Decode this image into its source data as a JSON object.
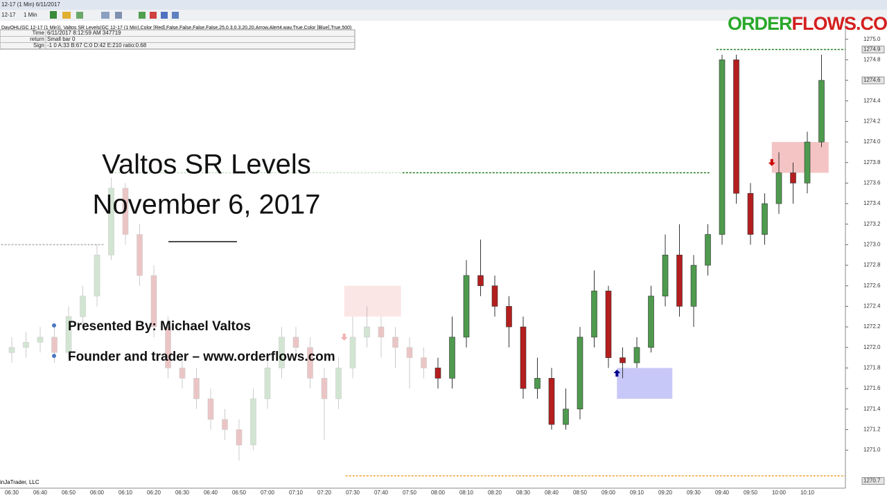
{
  "window": {
    "title": "12-17 (1 Min)  6/11/2017",
    "toolbar": [
      "12-17",
      "1 Min"
    ]
  },
  "indicator_line": "DayOHL(GC 12-17 (1 Min)), Valtos SR Levels(GC 12-17 (1 Min),Color [Red],False,False,False,False,25,0.3,0.3,20,20,Arrow,Alert4.wav,True,Color [Blue],True,500)",
  "info_table": {
    "rows": [
      [
        "Time",
        "6/11/2017 8:12:59 AM 347719"
      ],
      [
        "return",
        "Small bar 0"
      ],
      [
        "Sign",
        "-1 0 A:33 B:67 C:0 D:42 E:210 ratio:0.68"
      ]
    ]
  },
  "logo": {
    "left": "ORDER",
    "right": "FLOWS.COM"
  },
  "overlay": {
    "title": "Valtos SR Levels",
    "subtitle": "November 6, 2017",
    "bullets": [
      "Presented By: Michael Valtos",
      "Founder and trader – www.orderflows.com"
    ]
  },
  "footer": "inJaTrader, LLC",
  "chart_data": {
    "type": "candlestick",
    "categories": [
      "06:30",
      null,
      "06:40",
      null,
      "06:50",
      null,
      "06:00",
      null,
      "06:10",
      null,
      "06:20",
      null,
      "06:30",
      null,
      "06:40",
      null,
      "06:50",
      null,
      "07:00",
      null,
      "07:10",
      null,
      "07:20",
      null,
      "07:30",
      null,
      "07:40",
      null,
      "07:50",
      null,
      "08:00",
      null,
      "08:10",
      null,
      "08:20",
      null,
      "08:30",
      null,
      "08:40",
      null,
      "08:50",
      null,
      "09:00",
      null,
      "09:10",
      null,
      "09:20",
      null,
      "09:30",
      null,
      "09:40",
      null,
      "09:50",
      null,
      "10:00",
      null,
      "10:10",
      null
    ],
    "open": [
      1271.95,
      1272.0,
      1272.05,
      1272.1,
      1271.95,
      1272.3,
      1272.5,
      1272.9,
      1273.55,
      1273.1,
      1272.7,
      1272.2,
      1271.8,
      1271.7,
      1271.5,
      1271.3,
      1271.2,
      1271.05,
      1271.5,
      1271.8,
      1272.1,
      1272.0,
      1271.7,
      1271.5,
      1271.8,
      1272.1,
      1272.2,
      1272.1,
      1272.0,
      1271.9,
      1271.8,
      1271.7,
      1272.1,
      1272.7,
      1272.6,
      1272.4,
      1272.2,
      1271.6,
      1271.7,
      1271.25,
      1271.4,
      1272.1,
      1272.55,
      1271.9,
      1271.85,
      1272.0,
      1272.5,
      1272.9,
      1272.4,
      1272.8,
      1273.1,
      1274.8,
      1273.5,
      1273.1,
      1273.4,
      1273.7,
      1273.6,
      1274.0
    ],
    "high": [
      1272.1,
      1272.15,
      1272.2,
      1272.2,
      1272.4,
      1272.6,
      1273.0,
      1273.65,
      1273.6,
      1273.2,
      1272.8,
      1272.3,
      1271.9,
      1271.8,
      1271.6,
      1271.4,
      1271.3,
      1271.6,
      1271.9,
      1272.2,
      1272.2,
      1272.1,
      1271.8,
      1271.9,
      1272.3,
      1272.4,
      1272.3,
      1272.2,
      1272.1,
      1272.0,
      1271.9,
      1272.3,
      1272.85,
      1273.05,
      1272.7,
      1272.5,
      1272.3,
      1271.9,
      1271.8,
      1271.6,
      1272.2,
      1272.75,
      1272.6,
      1272.0,
      1272.1,
      1272.6,
      1273.1,
      1273.2,
      1272.9,
      1273.2,
      1274.85,
      1274.85,
      1273.6,
      1273.5,
      1273.9,
      1273.8,
      1274.1,
      1274.85
    ],
    "low": [
      1271.85,
      1271.9,
      1271.95,
      1271.85,
      1271.9,
      1272.2,
      1272.4,
      1272.85,
      1273.0,
      1272.6,
      1272.1,
      1271.7,
      1271.6,
      1271.4,
      1271.2,
      1271.1,
      1270.9,
      1271.0,
      1271.4,
      1271.7,
      1271.9,
      1271.6,
      1271.1,
      1271.4,
      1271.7,
      1272.0,
      1271.9,
      1271.8,
      1271.6,
      1271.7,
      1271.6,
      1271.6,
      1272.0,
      1272.5,
      1272.3,
      1272.0,
      1271.5,
      1271.5,
      1271.2,
      1271.2,
      1271.3,
      1272.0,
      1271.8,
      1271.7,
      1271.8,
      1271.95,
      1272.4,
      1272.3,
      1272.2,
      1272.7,
      1273.0,
      1273.4,
      1273.0,
      1273.0,
      1273.3,
      1273.4,
      1273.5,
      1273.95
    ],
    "close": [
      1272.0,
      1272.05,
      1272.1,
      1271.95,
      1272.3,
      1272.5,
      1272.9,
      1273.55,
      1273.1,
      1272.7,
      1272.2,
      1271.8,
      1271.7,
      1271.5,
      1271.3,
      1271.2,
      1271.05,
      1271.5,
      1271.8,
      1272.1,
      1272.0,
      1271.7,
      1271.5,
      1271.8,
      1272.1,
      1272.2,
      1272.1,
      1272.0,
      1271.9,
      1271.8,
      1271.7,
      1272.1,
      1272.7,
      1272.6,
      1272.4,
      1272.2,
      1271.6,
      1271.7,
      1271.25,
      1271.4,
      1272.1,
      1272.55,
      1271.9,
      1271.85,
      1272.0,
      1272.5,
      1272.9,
      1272.4,
      1272.8,
      1273.1,
      1274.8,
      1273.5,
      1273.1,
      1273.4,
      1273.7,
      1273.6,
      1274.0,
      1274.6
    ],
    "up_color": "#4e9a4e",
    "down_color": "#b41e1e",
    "dim_before_index": 30,
    "ylim": [
      1270.63,
      1275.18
    ],
    "yticks": [
      {
        "value": 1275.0,
        "label": "1275.0"
      },
      1274.8,
      1274.6,
      1274.4,
      1274.2,
      {
        "value": 1274.0,
        "label": "1274.0"
      },
      1273.8,
      1273.6,
      1273.4,
      1273.2,
      {
        "value": 1273.0,
        "label": "1273.0"
      },
      1272.8,
      1272.6,
      1272.4,
      1272.2,
      {
        "value": 1272.0,
        "label": "1272.0"
      },
      1271.8,
      1271.6,
      1271.4,
      1271.2,
      {
        "value": 1271.0,
        "label": "1271.0"
      }
    ],
    "price_markers": [
      {
        "value": 1274.9,
        "label": "1274.9"
      },
      {
        "value": 1274.6,
        "label": "1274.6"
      },
      {
        "value": 1270.7,
        "label": "1270.7"
      }
    ],
    "levels": [
      {
        "value": 1273.0,
        "color": "#b0b0b0",
        "start": -1,
        "end": 6.5
      },
      {
        "value": 1273.7,
        "color": "#c4e2c4",
        "start": 7,
        "end": 27.5
      },
      {
        "value": 1273.7,
        "color": "#1a7a1a",
        "start": 27.5,
        "end": 49.2
      },
      {
        "value": 1274.9,
        "color": "#1a7a1a",
        "start": 49.6,
        "end": 58.7
      },
      {
        "value": 1270.75,
        "color": "#f0a030",
        "start": 23.5,
        "end": 58.7
      }
    ],
    "zones": [
      {
        "top": 1274.0,
        "bottom": 1273.7,
        "start": 53.5,
        "end": 57.5,
        "color": "#f4c4c4"
      },
      {
        "top": 1271.8,
        "bottom": 1271.5,
        "start": 42.6,
        "end": 46.5,
        "color": "#c8c8f8"
      },
      {
        "top": 1272.6,
        "bottom": 1272.3,
        "start": 23.4,
        "end": 27.4,
        "color": "#fbe6e6"
      }
    ],
    "arrows": [
      {
        "direction": "down",
        "price": 1273.8,
        "index": 53.5,
        "color": "#cc0000"
      },
      {
        "direction": "up",
        "price": 1271.75,
        "index": 42.6,
        "color": "#00008c"
      },
      {
        "direction": "down",
        "price": 1272.1,
        "index": 23.4,
        "color": "#f0b0b0"
      }
    ]
  }
}
